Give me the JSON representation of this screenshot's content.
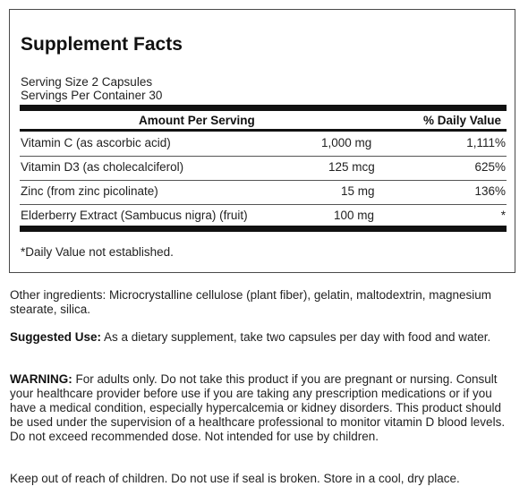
{
  "facts": {
    "title": "Supplement Facts",
    "serving_size": "Serving Size 2 Capsules",
    "servings_per_container": "Servings Per Container 30",
    "col_amount": "Amount Per Serving",
    "col_dv": "% Daily Value",
    "rows": [
      {
        "name": "Vitamin C (as ascorbic acid)",
        "amount": "1,000 mg",
        "dv": "1,111%"
      },
      {
        "name": "Vitamin D3 (as cholecalciferol)",
        "amount": "125 mcg",
        "dv": "625%"
      },
      {
        "name": "Zinc (from zinc picolinate)",
        "amount": "15 mg",
        "dv": "136%"
      },
      {
        "name": "Elderberry Extract (Sambucus nigra) (fruit)",
        "amount": "100 mg",
        "dv": "*"
      }
    ],
    "footnote": "*Daily Value not established."
  },
  "other_ingredients": "Other ingredients: Microcrystalline cellulose (plant fiber), gelatin, maltodextrin, magnesium stearate, silica.",
  "suggested_use": {
    "label": "Suggested Use:",
    "text": " As a dietary supplement, take two capsules per day with food and water."
  },
  "warning": {
    "label": "WARNING:",
    "text": " For adults only. Do not take this product if you are pregnant or nursing. Consult your healthcare provider before use if you are taking any prescription medications or if you have a medical condition, especially hypercalcemia or kidney disorders. This product should be used under the supervision of a healthcare professional to monitor vitamin D blood levels. Do not exceed recommended dose. Not intended for use by children."
  },
  "storage": "Keep out of reach of children. Do not use if seal is broken. Store in a cool, dry place."
}
